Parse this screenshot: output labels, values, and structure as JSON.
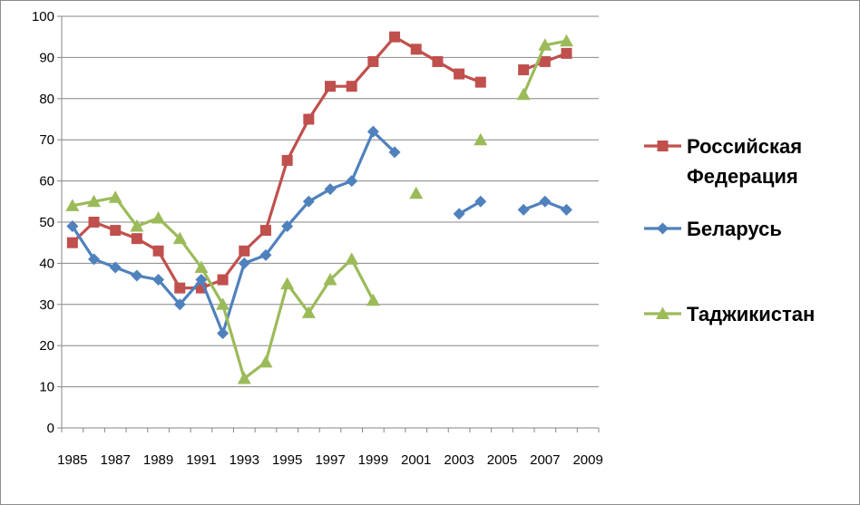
{
  "chart_data": {
    "type": "line",
    "title": "",
    "xlabel": "",
    "ylabel": "",
    "x": [
      1985,
      1986,
      1987,
      1988,
      1989,
      1990,
      1991,
      1992,
      1993,
      1994,
      1995,
      1996,
      1997,
      1998,
      1999,
      2000,
      2001,
      2002,
      2003,
      2004,
      2005,
      2006,
      2007,
      2008,
      2009
    ],
    "x_tick_labels": [
      "1985",
      "1987",
      "1989",
      "1991",
      "1993",
      "1995",
      "1997",
      "1999",
      "2001",
      "2003",
      "2005",
      "2007",
      "2009"
    ],
    "y_tick_labels": [
      "0",
      "10",
      "20",
      "30",
      "40",
      "50",
      "60",
      "70",
      "80",
      "90",
      "100"
    ],
    "xlim": [
      1985,
      2009
    ],
    "ylim": [
      0,
      100
    ],
    "grid": true,
    "legend_position": "right",
    "series": [
      {
        "name": "Российская Федерация",
        "legend_lines": [
          "Российская",
          "Федерация"
        ],
        "color": "#c0504d",
        "marker": "square",
        "values": [
          45,
          50,
          48,
          46,
          43,
          34,
          34,
          36,
          43,
          48,
          65,
          75,
          83,
          83,
          89,
          95,
          92,
          89,
          86,
          84,
          null,
          87,
          89,
          91,
          null
        ]
      },
      {
        "name": "Беларусь",
        "legend_lines": [
          "Беларусь"
        ],
        "color": "#4f81bd",
        "marker": "diamond",
        "values": [
          49,
          41,
          39,
          37,
          36,
          30,
          36,
          23,
          40,
          42,
          49,
          55,
          58,
          60,
          72,
          67,
          null,
          null,
          52,
          55,
          null,
          53,
          55,
          53,
          null
        ]
      },
      {
        "name": "Таджикистан",
        "legend_lines": [
          "Таджикистан"
        ],
        "color": "#9bbb59",
        "marker": "triangle",
        "values": [
          54,
          55,
          56,
          49,
          51,
          46,
          39,
          30,
          12,
          16,
          35,
          28,
          36,
          41,
          31,
          null,
          57,
          null,
          null,
          70,
          null,
          81,
          93,
          94,
          null
        ]
      }
    ]
  }
}
